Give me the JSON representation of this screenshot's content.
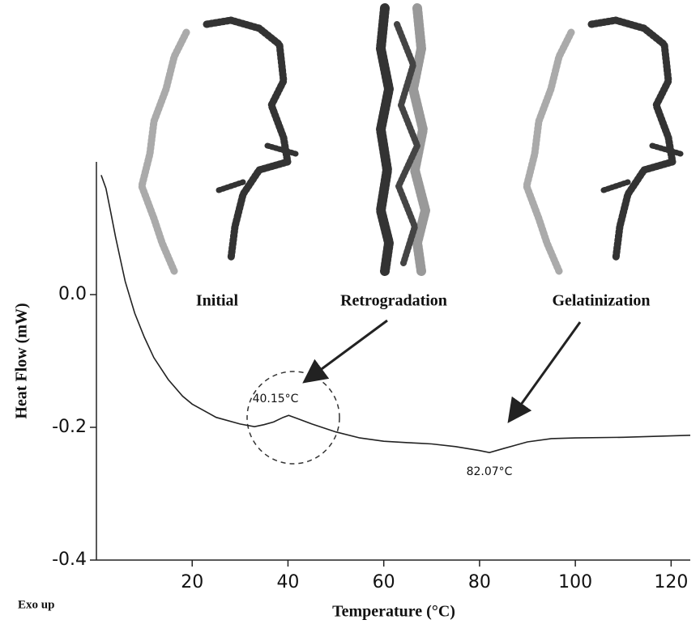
{
  "chart_data": {
    "type": "line",
    "x_label": "Temperature (°C)",
    "y_label": "Heat Flow (mW)",
    "x": [
      1,
      2,
      3,
      4,
      5,
      6,
      7,
      8,
      10,
      12,
      15,
      18,
      20,
      25,
      30,
      33,
      35,
      37,
      39,
      40.15,
      42,
      45,
      50,
      55,
      60,
      65,
      67.5,
      70,
      75,
      80,
      82.07,
      85,
      90,
      95,
      100,
      110,
      124
    ],
    "values": [
      0.18,
      0.16,
      0.124,
      0.087,
      0.053,
      0.02,
      -0.004,
      -0.028,
      -0.064,
      -0.095,
      -0.128,
      -0.153,
      -0.165,
      -0.185,
      -0.195,
      -0.199,
      -0.196,
      -0.192,
      -0.185,
      -0.182,
      -0.187,
      -0.195,
      -0.207,
      -0.216,
      -0.221,
      -0.223,
      -0.224,
      -0.225,
      -0.229,
      -0.235,
      -0.238,
      -0.232,
      -0.222,
      -0.217,
      -0.216,
      -0.215,
      -0.212
    ],
    "color": "#222222",
    "xlim": [
      0,
      124
    ],
    "xticks": [
      20,
      40,
      60,
      80,
      100,
      120
    ],
    "ylim": [
      -0.4,
      0.2
    ],
    "yticks": [
      -0.4,
      -0.2,
      {
        "value": 0,
        "label": "0.0"
      }
    ],
    "annotations": [
      "40.15°C",
      "82.07°C"
    ],
    "image_labels": [
      "Initial",
      "Retrogradation",
      "Gelatinization"
    ],
    "note": "Exo up"
  }
}
